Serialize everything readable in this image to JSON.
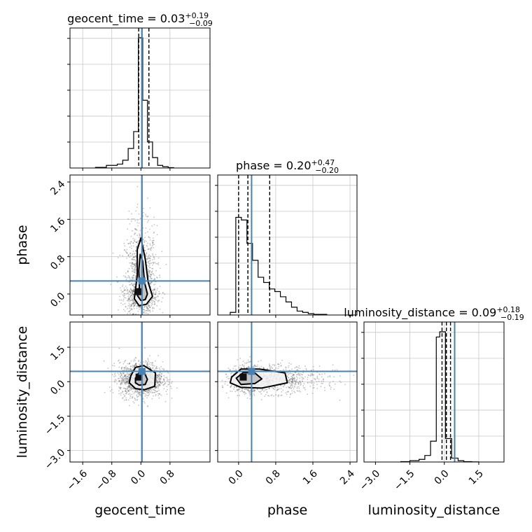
{
  "chart_data": {
    "type": "corner",
    "parameters": [
      "geocent_time",
      "phase",
      "luminosity_distance"
    ],
    "axis_labels": {
      "x": [
        "geocent_time",
        "phase",
        "luminosity_distance"
      ],
      "y": [
        "phase",
        "luminosity_distance"
      ]
    },
    "titles": [
      {
        "name": "geocent_time",
        "median": "0.03",
        "upper": "+0.19",
        "lower": "−0.09"
      },
      {
        "name": "phase",
        "median": "0.20",
        "upper": "+0.47",
        "lower": "−0.20"
      },
      {
        "name": "luminosity_distance",
        "median": "0.09",
        "upper": "+0.18",
        "lower": "−0.19"
      }
    ],
    "ranges": {
      "geocent_time": [
        -1.95,
        1.9
      ],
      "phase": [
        -0.45,
        2.55
      ],
      "luminosity_distance": [
        -3.5,
        2.6
      ]
    },
    "ticks": {
      "geocent_time": [
        "−1.6",
        "−0.8",
        "0.0",
        "0.8"
      ],
      "phase": [
        "0.0",
        "0.8",
        "1.6",
        "2.4"
      ],
      "luminosity_distance": [
        "−3.0",
        "−1.5",
        "0.0",
        "1.5"
      ]
    },
    "truths": {
      "geocent_time": 0.03,
      "phase": 0.28,
      "luminosity_distance": 0.45
    },
    "quantiles": {
      "geocent_time": [
        -0.06,
        0.03,
        0.22
      ],
      "phase": [
        0.0,
        0.2,
        0.67
      ],
      "luminosity_distance": [
        -0.1,
        0.09,
        0.27
      ]
    },
    "histograms": {
      "geocent_time": {
        "bins": [
          -1.25,
          -0.95,
          -0.65,
          -0.5,
          -0.35,
          -0.2,
          -0.07,
          0.05,
          0.18,
          0.32,
          0.46,
          0.6,
          0.75,
          0.9
        ],
        "values": [
          0.005,
          0.02,
          0.03,
          0.06,
          0.15,
          0.28,
          1.0,
          0.52,
          0.2,
          0.08,
          0.02,
          0.01,
          0.003
        ]
      },
      "phase": {
        "bins": [
          -0.18,
          -0.06,
          0.06,
          0.18,
          0.3,
          0.42,
          0.54,
          0.66,
          0.78,
          0.9,
          1.02,
          1.14,
          1.26,
          1.38,
          1.5,
          1.62,
          1.9
        ],
        "values": [
          0.02,
          0.75,
          0.73,
          0.55,
          0.42,
          0.29,
          0.25,
          0.2,
          0.18,
          0.14,
          0.1,
          0.06,
          0.03,
          0.02,
          0.01,
          0.005
        ]
      },
      "luminosity_distance": {
        "bins": [
          -1.9,
          -1.5,
          -1.1,
          -0.85,
          -0.6,
          -0.35,
          -0.2,
          0.05,
          0.32,
          0.6,
          0.85,
          1.2,
          1.5
        ],
        "values": [
          0.003,
          0.01,
          0.02,
          0.05,
          0.16,
          0.96,
          1.0,
          0.18,
          0.03,
          0.01,
          0.003,
          0.001
        ]
      }
    },
    "contours": {
      "phase_vs_geocent_time": [
        {
          "level": "outer",
          "points": [
            [
              -0.18,
              -0.1
            ],
            [
              -0.05,
              -0.25
            ],
            [
              0.15,
              -0.22
            ],
            [
              0.32,
              -0.05
            ],
            [
              0.2,
              0.25
            ],
            [
              0.12,
              0.75
            ],
            [
              0.0,
              1.2
            ],
            [
              -0.1,
              0.95
            ],
            [
              -0.1,
              0.4
            ]
          ]
        },
        {
          "level": "inner",
          "points": [
            [
              -0.09,
              -0.04
            ],
            [
              0.0,
              -0.14
            ],
            [
              0.12,
              -0.12
            ],
            [
              0.18,
              0.0
            ],
            [
              0.1,
              0.25
            ],
            [
              0.05,
              0.7
            ],
            [
              -0.02,
              0.85
            ],
            [
              -0.06,
              0.5
            ],
            [
              -0.04,
              0.15
            ]
          ]
        }
      ],
      "luminosity_distance_vs_geocent_time": [
        {
          "level": "outer",
          "points": [
            [
              -0.28,
              0.25
            ],
            [
              -0.15,
              0.62
            ],
            [
              0.08,
              0.7
            ],
            [
              0.4,
              0.38
            ],
            [
              0.38,
              -0.2
            ],
            [
              0.1,
              -0.35
            ],
            [
              -0.15,
              -0.3
            ],
            [
              -0.32,
              -0.05
            ]
          ]
        },
        {
          "level": "inner",
          "points": [
            [
              -0.15,
              0.15
            ],
            [
              -0.05,
              0.4
            ],
            [
              0.1,
              0.38
            ],
            [
              0.18,
              0.1
            ],
            [
              0.12,
              -0.12
            ],
            [
              -0.05,
              -0.15
            ],
            [
              -0.15,
              -0.05
            ]
          ]
        }
      ],
      "luminosity_distance_vs_phase": [
        {
          "level": "outer",
          "points": [
            [
              -0.15,
              0.2
            ],
            [
              0.05,
              0.55
            ],
            [
              0.45,
              0.55
            ],
            [
              1.0,
              0.38
            ],
            [
              1.05,
              -0.05
            ],
            [
              0.5,
              -0.28
            ],
            [
              0.05,
              -0.25
            ],
            [
              -0.18,
              -0.05
            ]
          ]
        },
        {
          "level": "inner",
          "points": [
            [
              -0.05,
              0.15
            ],
            [
              0.1,
              0.4
            ],
            [
              0.35,
              0.38
            ],
            [
              0.5,
              0.12
            ],
            [
              0.35,
              -0.08
            ],
            [
              0.05,
              -0.12
            ]
          ]
        }
      ]
    }
  }
}
